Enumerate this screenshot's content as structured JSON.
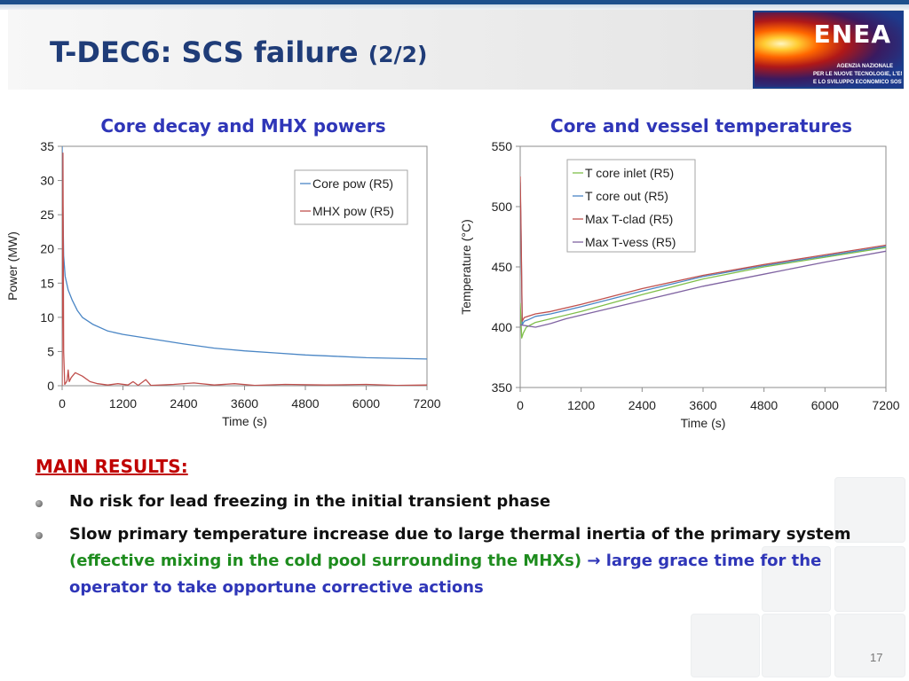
{
  "slide": {
    "title": "T-DEC6: SCS failure",
    "title_suffix": "(2/2)",
    "page_number": "17"
  },
  "logo": {
    "name": "ENEA",
    "line1": "AGENZIA NAZIONALE",
    "line2": "PER LE NUOVE TECNOLOGIE, L'ENERGIA",
    "line3": "E LO SVILUPPO ECONOMICO SOSTENIBILE"
  },
  "results": {
    "heading": "MAIN RESULTS:",
    "bullet1": "No risk for lead freezing in the initial transient phase",
    "bullet2_a": "Slow primary temperature increase due to large thermal inertia of the primary system ",
    "bullet2_green": "(effective mixing in the cold pool surrounding the MHXs) ",
    "bullet2_arrow": "→",
    "bullet2_blue": " large grace time for the operator to take opportune corrective actions"
  },
  "chart_data": [
    {
      "type": "line",
      "title": "Core decay and MHX powers",
      "xlabel": "Time (s)",
      "ylabel": "Power (MW)",
      "xlim": [
        0,
        7200
      ],
      "ylim": [
        0,
        35
      ],
      "xticks": [
        0,
        1200,
        2400,
        3600,
        4800,
        6000,
        7200
      ],
      "yticks": [
        0,
        5,
        10,
        15,
        20,
        25,
        30,
        35
      ],
      "grid": "none",
      "legend": "top-right",
      "series": [
        {
          "name": "Core pow (R5)",
          "color": "#4a86c5",
          "points": [
            [
              0,
              35
            ],
            [
              15,
              26
            ],
            [
              30,
              19
            ],
            [
              60,
              16
            ],
            [
              120,
              14
            ],
            [
              200,
              12.5
            ],
            [
              300,
              11
            ],
            [
              400,
              10
            ],
            [
              600,
              9
            ],
            [
              900,
              8
            ],
            [
              1200,
              7.5
            ],
            [
              1800,
              6.8
            ],
            [
              2400,
              6.1
            ],
            [
              3000,
              5.5
            ],
            [
              3600,
              5.1
            ],
            [
              4200,
              4.8
            ],
            [
              4800,
              4.5
            ],
            [
              5400,
              4.3
            ],
            [
              6000,
              4.1
            ],
            [
              6600,
              4.0
            ],
            [
              7200,
              3.9
            ]
          ]
        },
        {
          "name": "MHX pow (R5)",
          "color": "#c0504d",
          "points": [
            [
              0,
              0
            ],
            [
              15,
              34
            ],
            [
              30,
              5
            ],
            [
              50,
              0.2
            ],
            [
              80,
              0.5
            ],
            [
              100,
              0.8
            ],
            [
              120,
              2.3
            ],
            [
              140,
              0.6
            ],
            [
              180,
              1.2
            ],
            [
              260,
              1.9
            ],
            [
              400,
              1.4
            ],
            [
              550,
              0.6
            ],
            [
              700,
              0.3
            ],
            [
              900,
              0.1
            ],
            [
              1100,
              0.3
            ],
            [
              1300,
              0.1
            ],
            [
              1400,
              0.6
            ],
            [
              1500,
              0.05
            ],
            [
              1650,
              0.9
            ],
            [
              1750,
              0.05
            ],
            [
              2200,
              0.2
            ],
            [
              2600,
              0.4
            ],
            [
              3000,
              0.1
            ],
            [
              3400,
              0.3
            ],
            [
              3800,
              0.05
            ],
            [
              4400,
              0.2
            ],
            [
              5200,
              0.1
            ],
            [
              6000,
              0.2
            ],
            [
              6600,
              0.05
            ],
            [
              7200,
              0.1
            ]
          ]
        }
      ]
    },
    {
      "type": "line",
      "title": "Core and vessel temperatures",
      "xlabel": "Time (s)",
      "ylabel": "Temperature (°C)",
      "xlim": [
        0,
        7200
      ],
      "ylim": [
        350,
        550
      ],
      "xticks": [
        0,
        1200,
        2400,
        3600,
        4800,
        6000,
        7200
      ],
      "yticks": [
        350,
        400,
        450,
        500,
        550
      ],
      "grid": "none",
      "legend": "top-left",
      "series": [
        {
          "name": "T core inlet (R5)",
          "color": "#7fbf4a",
          "points": [
            [
              0,
              420
            ],
            [
              30,
              391
            ],
            [
              60,
              395
            ],
            [
              120,
              400
            ],
            [
              300,
              404
            ],
            [
              600,
              407
            ],
            [
              1200,
              413
            ],
            [
              2400,
              427
            ],
            [
              3600,
              440
            ],
            [
              4800,
              450
            ],
            [
              6000,
              458
            ],
            [
              7200,
              466
            ]
          ]
        },
        {
          "name": "T core out (R5)",
          "color": "#4a86c5",
          "points": [
            [
              0,
              520
            ],
            [
              15,
              480
            ],
            [
              40,
              402
            ],
            [
              80,
              405
            ],
            [
              150,
              406
            ],
            [
              300,
              409
            ],
            [
              600,
              411
            ],
            [
              1200,
              417
            ],
            [
              2400,
              430
            ],
            [
              3600,
              442
            ],
            [
              4800,
              451
            ],
            [
              6000,
              459
            ],
            [
              7200,
              467
            ]
          ]
        },
        {
          "name": "Max T-clad (R5)",
          "color": "#c0504d",
          "points": [
            [
              0,
              525
            ],
            [
              15,
              485
            ],
            [
              40,
              405
            ],
            [
              80,
              408
            ],
            [
              150,
              409
            ],
            [
              300,
              411
            ],
            [
              600,
              413
            ],
            [
              1200,
              419
            ],
            [
              2400,
              432
            ],
            [
              3600,
              443
            ],
            [
              4800,
              452
            ],
            [
              6000,
              460
            ],
            [
              7200,
              468
            ]
          ]
        },
        {
          "name": "Max T-vess (R5)",
          "color": "#8064a2",
          "points": [
            [
              0,
              402
            ],
            [
              300,
              400
            ],
            [
              600,
              403
            ],
            [
              900,
              407
            ],
            [
              1200,
              410
            ],
            [
              2400,
              422
            ],
            [
              3600,
              434
            ],
            [
              4800,
              444
            ],
            [
              6000,
              454
            ],
            [
              7200,
              463
            ]
          ]
        }
      ]
    }
  ]
}
